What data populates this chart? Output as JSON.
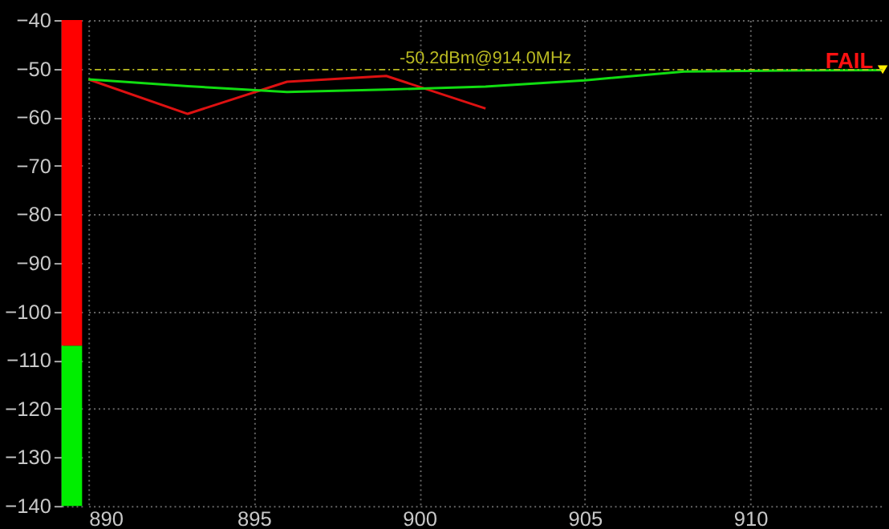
{
  "chart_data": [
    {
      "type": "bar",
      "categories": [
        null
      ],
      "series": [
        {
          "color": "#00ee00",
          "base": [
            -140
          ],
          "values": [
            33
          ]
        },
        {
          "color": "#ff0000",
          "base": [
            -107
          ],
          "values": [
            67
          ]
        }
      ],
      "ylim": [
        -140,
        -40
      ],
      "yticks": [
        -140,
        -130,
        -120,
        -110,
        -100,
        -90,
        -80,
        -70,
        -60,
        -50,
        -40
      ],
      "tick_labels": "y",
      "grid": "y"
    },
    {
      "type": "line",
      "xlim": [
        890,
        914
      ],
      "xticks": [
        890,
        895,
        900,
        905,
        910
      ],
      "ylim": [
        -140,
        -40
      ],
      "yticks": [
        -140,
        -130,
        -120,
        -110,
        -100,
        -90,
        -80,
        -70,
        -60,
        -50,
        -40
      ],
      "tick_labels": "x",
      "grid": true,
      "line_style": "solid",
      "marker": "none",
      "series": [
        {
          "color": "#dd1111",
          "x": [
            890,
            893,
            896,
            899,
            902
          ],
          "values": [
            -52.2,
            -59.3,
            -52.7,
            -51.5,
            -58.2
          ]
        },
        {
          "color": "#11dd11",
          "x": [
            890,
            893,
            896,
            899,
            902,
            905,
            908,
            911,
            914
          ],
          "values": [
            -52.2,
            -53.6,
            -54.8,
            -54.3,
            -53.7,
            -52.4,
            -50.6,
            -50.4,
            -50.3
          ]
        },
        {
          "type": "scatter",
          "marker": "triangle",
          "color": "#ffee00",
          "x": [
            914
          ],
          "values": [
            -50.2
          ]
        }
      ],
      "ref_lines": [
        {
          "axis": "y",
          "value": -50.2,
          "label": "-50.2dBm@914.0MHz",
          "color": "#bbbb22",
          "line_style": "dashed"
        }
      ],
      "annotations": [
        {
          "text": "FAIL",
          "x": 914,
          "y": -50.2
        }
      ]
    }
  ]
}
